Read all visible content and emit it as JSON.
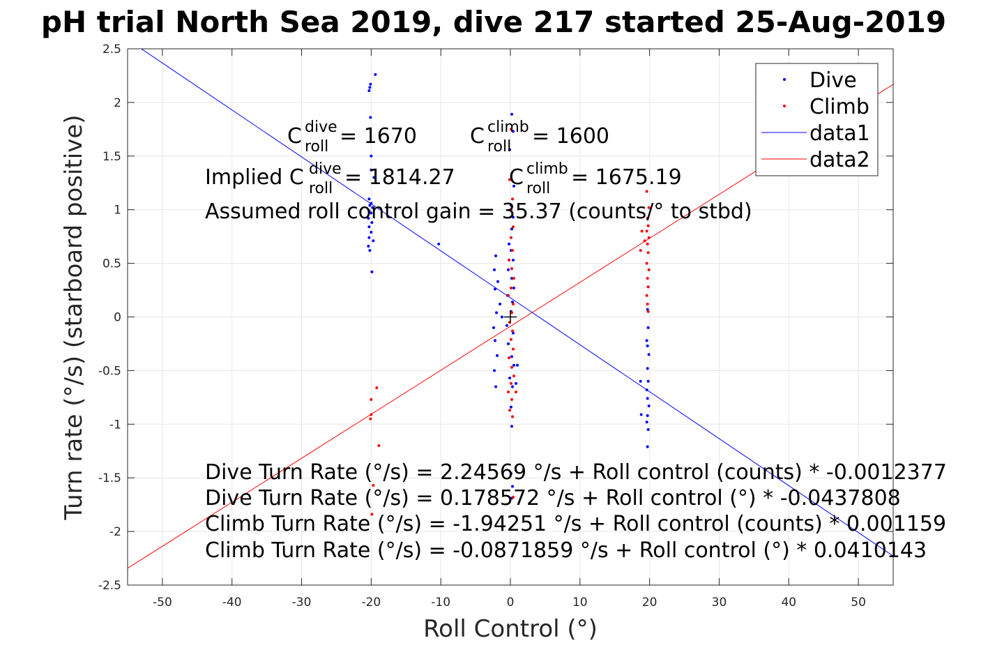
{
  "chart_data": {
    "type": "scatter",
    "title": "pH trial North Sea 2019, dive 217 started 25-Aug-2019",
    "xlabel": "Roll Control (°)",
    "ylabel": "Turn rate (°/s) (starboard positive)",
    "xlim": [
      -55,
      55
    ],
    "ylim": [
      -2.5,
      2.5
    ],
    "xticks": [
      -50,
      -40,
      -30,
      -20,
      -10,
      0,
      10,
      20,
      30,
      40,
      50
    ],
    "yticks": [
      -2.5,
      -2,
      -1.5,
      -1,
      -0.5,
      0,
      0.5,
      1,
      1.5,
      2,
      2.5
    ],
    "xtick_labels": [
      "-50",
      "-40",
      "-30",
      "-20",
      "-10",
      "0",
      "10",
      "20",
      "30",
      "40",
      "50"
    ],
    "ytick_labels": [
      "-2.5",
      "-2",
      "-1.5",
      "-1",
      "-0.5",
      "0",
      "0.5",
      "1",
      "1.5",
      "2",
      "2.5"
    ],
    "grid": true,
    "legend_position": "top-right",
    "series": [
      {
        "name": "Dive",
        "color": "#0000ff",
        "points": [
          [
            -20.1,
            2.17
          ],
          [
            -20.2,
            2.14
          ],
          [
            -20.3,
            2.11
          ],
          [
            -19.4,
            2.26
          ],
          [
            -20.1,
            1.86
          ],
          [
            -20.0,
            1.5
          ],
          [
            -20.0,
            1.37
          ],
          [
            -19.6,
            1.3
          ],
          [
            -20.3,
            1.1
          ],
          [
            -20.0,
            1.06
          ],
          [
            -20.2,
            1.04
          ],
          [
            -19.8,
            1.02
          ],
          [
            -20.3,
            0.99
          ],
          [
            -20.0,
            0.97
          ],
          [
            -20.4,
            0.92
          ],
          [
            -19.9,
            0.88
          ],
          [
            -20.3,
            0.84
          ],
          [
            -20.0,
            0.79
          ],
          [
            -20.3,
            0.74
          ],
          [
            -19.7,
            0.71
          ],
          [
            -20.4,
            0.66
          ],
          [
            -20.2,
            0.62
          ],
          [
            -19.9,
            0.42
          ],
          [
            -10.3,
            0.68
          ],
          [
            0.2,
            1.89
          ],
          [
            0.4,
            1.73
          ],
          [
            -0.1,
            1.56
          ],
          [
            0.5,
            1.22
          ],
          [
            0.1,
            1.04
          ],
          [
            0.4,
            0.93
          ],
          [
            0.2,
            0.82
          ],
          [
            -0.2,
            0.68
          ],
          [
            0.1,
            0.62
          ],
          [
            0.4,
            0.53
          ],
          [
            -0.3,
            0.44
          ],
          [
            0.2,
            0.36
          ],
          [
            0.5,
            0.27
          ],
          [
            -0.4,
            0.2
          ],
          [
            0.3,
            0.14
          ],
          [
            0.1,
            0.05
          ],
          [
            -0.5,
            -0.08
          ],
          [
            0.4,
            -0.15
          ],
          [
            -0.3,
            -0.25
          ],
          [
            0.2,
            -0.37
          ],
          [
            0.5,
            -0.45
          ],
          [
            -0.1,
            -0.57
          ],
          [
            0.3,
            -0.65
          ],
          [
            0.1,
            -0.84
          ],
          [
            0.2,
            -1.02
          ],
          [
            -2.1,
            0.57
          ],
          [
            -2.3,
            0.44
          ],
          [
            -1.8,
            0.33
          ],
          [
            -2.2,
            0.26
          ],
          [
            -1.5,
            0.12
          ],
          [
            -2.0,
            0.04
          ],
          [
            -1.2,
            0.0
          ],
          [
            -2.4,
            -0.1
          ],
          [
            -2.2,
            -0.22
          ],
          [
            -1.9,
            -0.36
          ],
          [
            -2.3,
            -0.5
          ],
          [
            -2.1,
            -0.65
          ],
          [
            1.0,
            -0.45
          ],
          [
            0.8,
            -0.62
          ],
          [
            19.7,
            0.07
          ],
          [
            19.8,
            -0.1
          ],
          [
            19.6,
            -0.22
          ],
          [
            19.7,
            -0.27
          ],
          [
            19.9,
            -0.35
          ],
          [
            19.7,
            -0.48
          ],
          [
            19.8,
            -0.6
          ],
          [
            19.6,
            -0.68
          ],
          [
            19.7,
            -0.76
          ],
          [
            19.9,
            -0.83
          ],
          [
            19.7,
            -0.92
          ],
          [
            19.6,
            -0.98
          ],
          [
            19.8,
            -1.05
          ],
          [
            19.7,
            -1.21
          ],
          [
            18.7,
            -0.6
          ],
          [
            18.8,
            -0.91
          ],
          [
            0.1,
            -1.46
          ],
          [
            0.3,
            -1.58
          ],
          [
            0.2,
            -1.69
          ]
        ]
      },
      {
        "name": "Climb",
        "color": "#ff0000",
        "points": [
          [
            0.1,
            1.75
          ],
          [
            -0.1,
            1.28
          ],
          [
            0.3,
            1.1
          ],
          [
            0.1,
            1.0
          ],
          [
            0.4,
            0.84
          ],
          [
            0.1,
            0.74
          ],
          [
            0.3,
            0.62
          ],
          [
            -0.2,
            0.53
          ],
          [
            0.2,
            0.45
          ],
          [
            0.5,
            0.36
          ],
          [
            0.1,
            0.27
          ],
          [
            -0.3,
            0.2
          ],
          [
            0.4,
            0.12
          ],
          [
            0.2,
            0.04
          ],
          [
            -0.1,
            -0.05
          ],
          [
            0.3,
            -0.13
          ],
          [
            0.1,
            -0.21
          ],
          [
            0.4,
            -0.3
          ],
          [
            -0.2,
            -0.38
          ],
          [
            0.2,
            -0.47
          ],
          [
            0.5,
            -0.55
          ],
          [
            0.1,
            -0.62
          ],
          [
            -0.3,
            -0.7
          ],
          [
            0.2,
            -0.77
          ],
          [
            -0.1,
            -0.87
          ],
          [
            0.3,
            -0.93
          ],
          [
            0.8,
            -0.7
          ],
          [
            0.4,
            -1.68
          ],
          [
            19.6,
            1.17
          ],
          [
            19.9,
            1.02
          ],
          [
            19.7,
            0.92
          ],
          [
            19.8,
            0.85
          ],
          [
            19.6,
            0.8
          ],
          [
            19.9,
            0.74
          ],
          [
            19.7,
            0.68
          ],
          [
            19.8,
            0.6
          ],
          [
            19.6,
            0.5
          ],
          [
            19.9,
            0.44
          ],
          [
            19.7,
            0.36
          ],
          [
            19.8,
            0.28
          ],
          [
            19.6,
            0.2
          ],
          [
            19.7,
            0.12
          ],
          [
            19.8,
            0.05
          ],
          [
            18.9,
            0.8
          ],
          [
            18.7,
            0.62
          ],
          [
            19.3,
            0.71
          ],
          [
            -20.0,
            -0.77
          ],
          [
            -20.0,
            -0.91
          ],
          [
            -20.1,
            -0.95
          ],
          [
            -19.2,
            -0.66
          ],
          [
            -18.9,
            -1.2
          ],
          [
            -19.7,
            -1.57
          ],
          [
            -19.9,
            -1.84
          ]
        ]
      },
      {
        "name": "data1",
        "color": "#0000ff",
        "line": {
          "intercept": 0.178572,
          "slope": -0.0437808
        }
      },
      {
        "name": "data2",
        "color": "#ff0000",
        "line": {
          "intercept": -0.0871859,
          "slope": 0.0410143
        }
      }
    ],
    "marker": {
      "x": 0,
      "y": 0,
      "symbol": "+",
      "color": "#000000"
    },
    "annotations": {
      "c_dive": {
        "base": "C",
        "sup": "dive",
        "sub": "roll",
        "rest": " = 1670"
      },
      "c_climb": {
        "base": "C",
        "sup": "climb",
        "sub": "roll",
        "rest": " = 1600"
      },
      "implied_prefix": "Implied C",
      "implied_dive_sup": "dive",
      "implied_dive_sub": "roll",
      "implied_dive_rest": " = 1814.27",
      "implied_climb": {
        "base": "C",
        "sup": "climb",
        "sub": "roll",
        "rest": " = 1675.19"
      },
      "gain": "Assumed roll control gain = 35.37 (counts/° to stbd)",
      "eq1": "Dive Turn Rate (°/s) = 2.24569 °/s + Roll control (counts) * -0.0012377",
      "eq2": "Dive Turn Rate (°/s) = 0.178572 °/s + Roll control (°) * -0.0437808",
      "eq3": "Climb Turn Rate (°/s) = -1.94251 °/s + Roll control (counts) * 0.001159",
      "eq4": "Climb Turn Rate (°/s) = -0.0871859 °/s + Roll control (°) * 0.0410143"
    }
  }
}
